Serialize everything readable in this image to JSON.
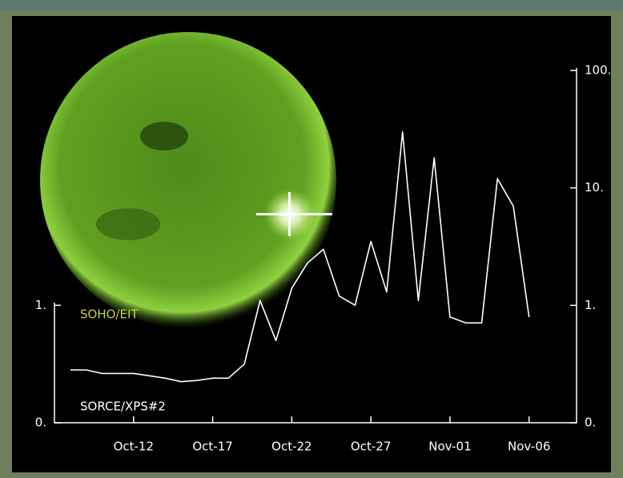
{
  "chart_data": {
    "type": "line",
    "annotations": [
      "SOHO/EIT",
      "SORCE/XPS#2"
    ],
    "x": [
      "Oct-08",
      "Oct-09",
      "Oct-10",
      "Oct-11",
      "Oct-12",
      "Oct-13",
      "Oct-14",
      "Oct-15",
      "Oct-16",
      "Oct-17",
      "Oct-18",
      "Oct-19",
      "Oct-20",
      "Oct-21",
      "Oct-22",
      "Oct-23",
      "Oct-24",
      "Oct-25",
      "Oct-26",
      "Oct-27",
      "Oct-28",
      "Oct-29",
      "Oct-30",
      "Oct-31",
      "Nov-01",
      "Nov-02",
      "Nov-03",
      "Nov-04",
      "Nov-05",
      "Nov-06"
    ],
    "series": [
      {
        "color": "#ffffff",
        "values": [
          0.45,
          0.45,
          0.42,
          0.42,
          0.42,
          0.4,
          0.38,
          0.35,
          0.36,
          0.38,
          0.38,
          0.5,
          1.1,
          0.7,
          1.4,
          2.3,
          3.0,
          1.2,
          1.0,
          3.5,
          1.3,
          30,
          1.1,
          18,
          0.9,
          0.85,
          0.85,
          12,
          7,
          0.9
        ]
      }
    ],
    "xlim": [
      "Oct-07",
      "Nov-09"
    ],
    "xticks": [
      "Oct-12",
      "Oct-17",
      "Oct-22",
      "Oct-27",
      "Nov-01",
      "Nov-06"
    ],
    "yscale": "symlog",
    "linthresh": 1,
    "ylim": [
      0,
      100
    ],
    "yticks": [
      {
        "value": 0,
        "label": "0."
      },
      {
        "value": 1,
        "label": "1."
      }
    ],
    "y2lim": [
      0,
      100
    ],
    "y2ticks": [
      {
        "value": 0,
        "label": "0."
      },
      {
        "value": 1,
        "label": "1."
      },
      {
        "value": 10,
        "label": "10."
      },
      {
        "value": 100,
        "label": "100."
      }
    ]
  }
}
